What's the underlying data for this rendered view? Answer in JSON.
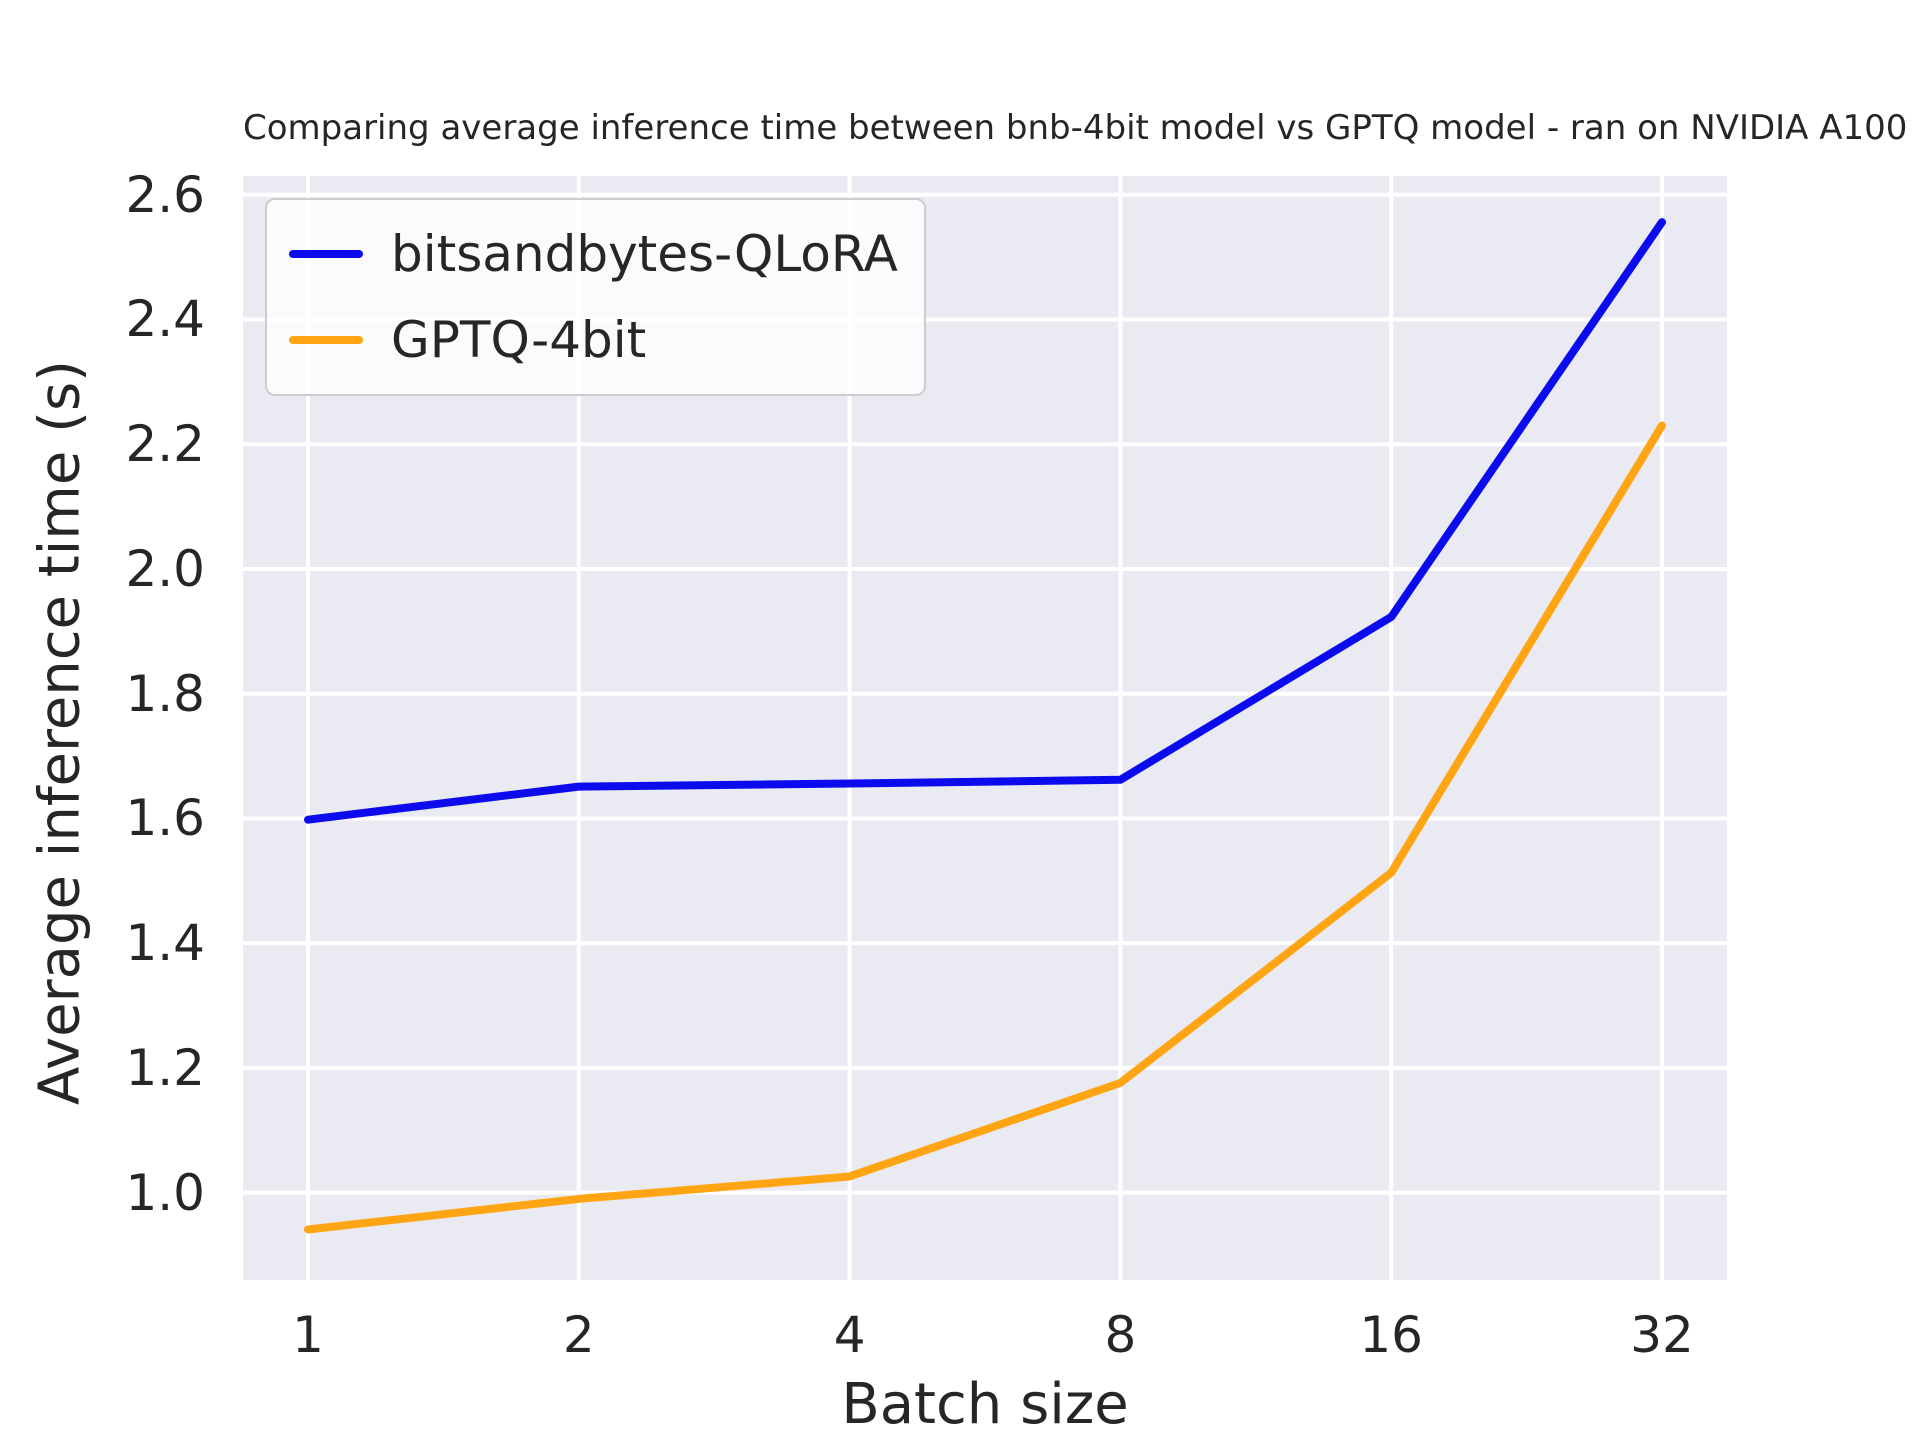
{
  "chart_data": {
    "type": "line",
    "title": "Comparing average inference time between bnb-4bit model vs GPTQ model - ran on NVIDIA A100",
    "xlabel": "Batch size",
    "ylabel": "Average inference time (s)",
    "categories": [
      "1",
      "2",
      "4",
      "8",
      "16",
      "32"
    ],
    "series": [
      {
        "name": "bitsandbytes-QLoRA",
        "color": "#0b0bee",
        "values": [
          1.598,
          1.651,
          1.656,
          1.662,
          1.923,
          2.556
        ]
      },
      {
        "name": "GPTQ-4bit",
        "color": "#ffa513",
        "values": [
          0.941,
          0.99,
          1.026,
          1.176,
          1.513,
          2.23
        ]
      }
    ],
    "yticks": {
      "values": [
        1.0,
        1.2,
        1.4,
        1.6,
        1.8,
        2.0,
        2.2,
        2.4,
        2.6
      ],
      "labels": [
        "1.0",
        "1.2",
        "1.4",
        "1.6",
        "1.8",
        "2.0",
        "2.2",
        "2.4",
        "2.6"
      ]
    },
    "ylim": [
      0.86,
      2.63
    ],
    "grid": true,
    "grid_color": "#ffffff",
    "plot_bg": "#eaeaf2",
    "text_color": "#262626",
    "legend_position": "upper left"
  }
}
